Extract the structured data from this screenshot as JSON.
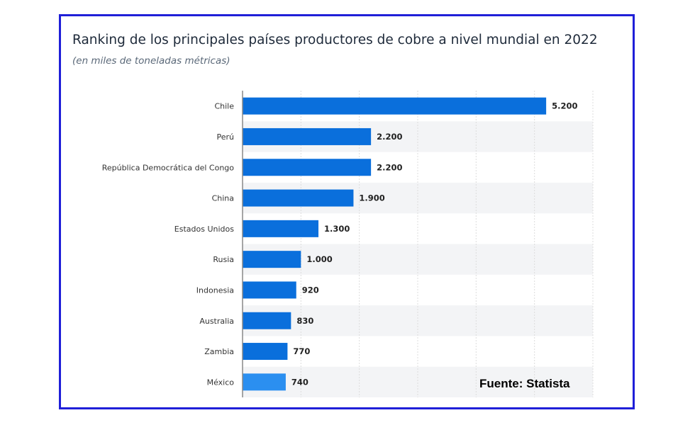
{
  "chart_data": {
    "type": "bar",
    "orientation": "horizontal",
    "title": "Ranking de los principales países productores de cobre a nivel mundial en 2022",
    "subtitle": "(en miles de toneladas métricas)",
    "categories": [
      "Chile",
      "Perú",
      "República Democrática del Congo",
      "China",
      "Estados Unidos",
      "Rusia",
      "Indonesia",
      "Australia",
      "Zambia",
      "México"
    ],
    "values": [
      5200,
      2200,
      2200,
      1900,
      1300,
      1000,
      920,
      830,
      770,
      740
    ],
    "data_labels": [
      "5.200",
      "2.200",
      "2.200",
      "1.900",
      "1.300",
      "1.000",
      "920",
      "830",
      "770",
      "740"
    ],
    "xlim": [
      0,
      6000
    ],
    "grid": true,
    "bar_color": "#0a6fdc",
    "last_bar_color": "#2b8ff0"
  },
  "source": "Fuente: Statista"
}
